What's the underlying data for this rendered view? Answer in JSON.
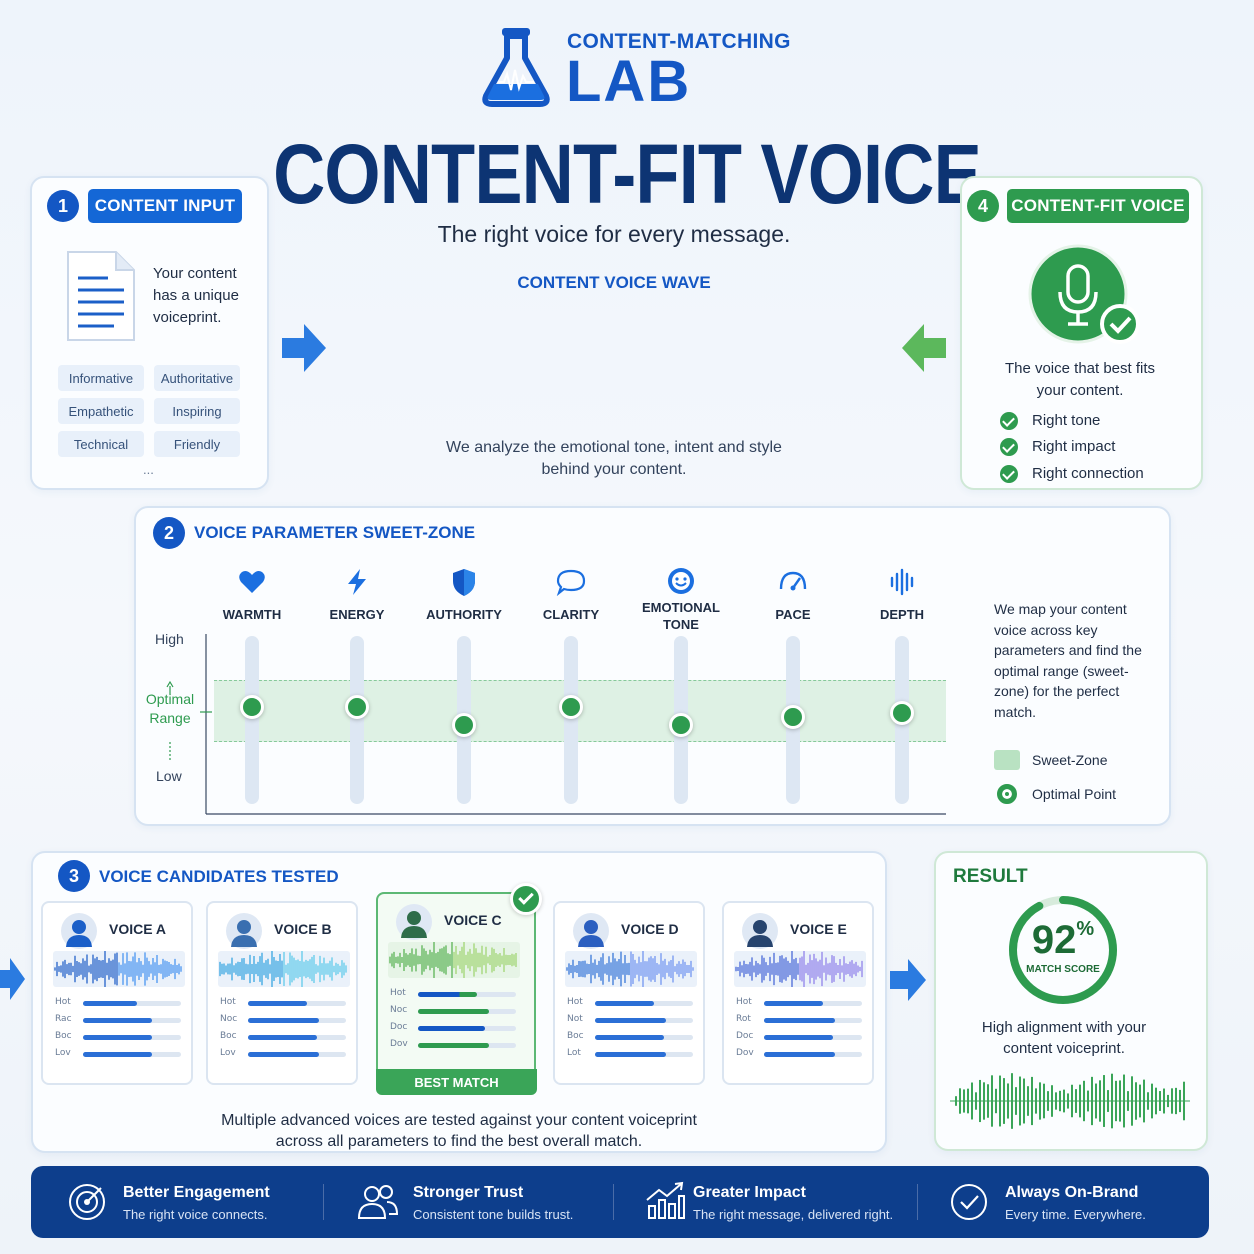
{
  "header": {
    "brand_top": "CONTENT-MATCHING",
    "brand_bottom": "LAB",
    "title": "CONTENT-FIT VOICE",
    "subtitle": "The right voice for every message."
  },
  "wave": {
    "title": "CONTENT VOICE WAVE",
    "caption_line1": "We analyze the emotional tone, intent and style",
    "caption_line2": "behind your content."
  },
  "input": {
    "number": "1",
    "title": "CONTENT INPUT",
    "text": "Your content has a unique voiceprint.",
    "tags": [
      "Informative",
      "Authoritative",
      "Empathetic",
      "Inspiring",
      "Technical",
      "Friendly"
    ],
    "more": "..."
  },
  "output": {
    "number": "4",
    "title": "CONTENT-FIT VOICE",
    "text_line1": "The voice that best fits",
    "text_line2": "your content.",
    "checks": [
      "Right tone",
      "Right impact",
      "Right connection"
    ],
    "colors": {
      "green": "#2e9b4f"
    }
  },
  "sweet": {
    "number": "2",
    "title": "VOICE PARAMETER SWEET-ZONE",
    "axis_high": "High",
    "axis_optimal": "Optimal Range",
    "axis_low": "Low",
    "params": [
      {
        "label": "WARMTH",
        "icon": "heart-icon",
        "level": 0.58
      },
      {
        "label": "ENERGY",
        "icon": "bolt-icon",
        "level": 0.58
      },
      {
        "label": "AUTHORITY",
        "icon": "shield-icon",
        "level": 0.47
      },
      {
        "label": "CLARITY",
        "icon": "speech-bubble-icon",
        "level": 0.58
      },
      {
        "label": "EMOTIONAL TONE",
        "icon": "smile-icon",
        "level": 0.47
      },
      {
        "label": "PACE",
        "icon": "gauge-icon",
        "level": 0.52
      },
      {
        "label": "DEPTH",
        "icon": "sound-bars-icon",
        "level": 0.54
      }
    ],
    "description": "We map your content voice across key parameters and find the optimal range (sweet-zone) for the perfect match.",
    "legend_zone": "Sweet-Zone",
    "legend_point": "Optimal Point"
  },
  "candidates": {
    "number": "3",
    "title": "VOICE CANDIDATES TESTED",
    "voices": [
      {
        "name": "VOICE A",
        "labels": [
          "Hot",
          "Rac",
          "Boc",
          "Lov"
        ],
        "bars": [
          0.55,
          0.7,
          0.7,
          0.7
        ],
        "color": "#2b6fd6"
      },
      {
        "name": "VOICE B",
        "labels": [
          "Hot",
          "Noc",
          "Boc",
          "Lov"
        ],
        "bars": [
          0.6,
          0.72,
          0.7,
          0.72
        ],
        "color": "#2b6fd6"
      },
      {
        "name": "VOICE C",
        "labels": [
          "Hot",
          "Noc",
          "Doc",
          "Dov"
        ],
        "bars": [
          0.6,
          0.72,
          0.68,
          0.72
        ],
        "color": "#2e9b4f",
        "badge": "BEST MATCH"
      },
      {
        "name": "VOICE D",
        "labels": [
          "Hot",
          "Not",
          "Boc",
          "Lot"
        ],
        "bars": [
          0.6,
          0.72,
          0.7,
          0.72
        ],
        "color": "#2b6fd6"
      },
      {
        "name": "VOICE E",
        "labels": [
          "Hot",
          "Rot",
          "Doc",
          "Dov"
        ],
        "bars": [
          0.6,
          0.72,
          0.7,
          0.72
        ],
        "color": "#2b6fd6"
      }
    ],
    "caption_line1": "Multiple advanced voices are tested against your content voiceprint",
    "caption_line2": "across all parameters to find the best overall match."
  },
  "result": {
    "title": "RESULT",
    "score": "92",
    "percent": "%",
    "score_fraction": 0.92,
    "score_label": "MATCH SCORE",
    "text_line1": "High alignment with your",
    "text_line2": "content voiceprint."
  },
  "footer": {
    "items": [
      {
        "title": "Better Engagement",
        "sub": "The right voice connects.",
        "icon": "target-icon"
      },
      {
        "title": "Stronger Trust",
        "sub": "Consistent tone builds trust.",
        "icon": "people-icon"
      },
      {
        "title": "Greater Impact",
        "sub": "The right message, delivered right.",
        "icon": "growth-chart-icon"
      },
      {
        "title": "Always On-Brand",
        "sub": "Every time. Everywhere.",
        "icon": "check-circle-icon"
      }
    ]
  }
}
